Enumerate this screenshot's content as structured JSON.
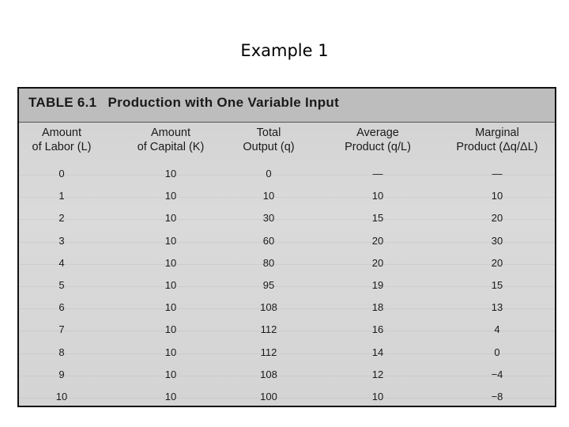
{
  "slide": {
    "title": "Example 1"
  },
  "table": {
    "label": "TABLE",
    "number": "6.1",
    "caption": "Production with One Variable Input",
    "columns": [
      {
        "line1": "Amount",
        "line2": "of Labor (L)"
      },
      {
        "line1": "Amount",
        "line2": "of Capital (K)"
      },
      {
        "line1": "Total",
        "line2": "Output (q)"
      },
      {
        "line1": "Average",
        "line2": "Product (q/L)"
      },
      {
        "line1": "Marginal",
        "line2": "Product (Δq/ΔL)"
      }
    ],
    "rows": [
      [
        "0",
        "10",
        "0",
        "—",
        "—"
      ],
      [
        "1",
        "10",
        "10",
        "10",
        "10"
      ],
      [
        "2",
        "10",
        "30",
        "15",
        "20"
      ],
      [
        "3",
        "10",
        "60",
        "20",
        "30"
      ],
      [
        "4",
        "10",
        "80",
        "20",
        "20"
      ],
      [
        "5",
        "10",
        "95",
        "19",
        "15"
      ],
      [
        "6",
        "10",
        "108",
        "18",
        "13"
      ],
      [
        "7",
        "10",
        "112",
        "16",
        "4"
      ],
      [
        "8",
        "10",
        "112",
        "14",
        "0"
      ],
      [
        "9",
        "10",
        "108",
        "12",
        "−4"
      ],
      [
        "10",
        "10",
        "100",
        "10",
        "−8"
      ]
    ]
  }
}
